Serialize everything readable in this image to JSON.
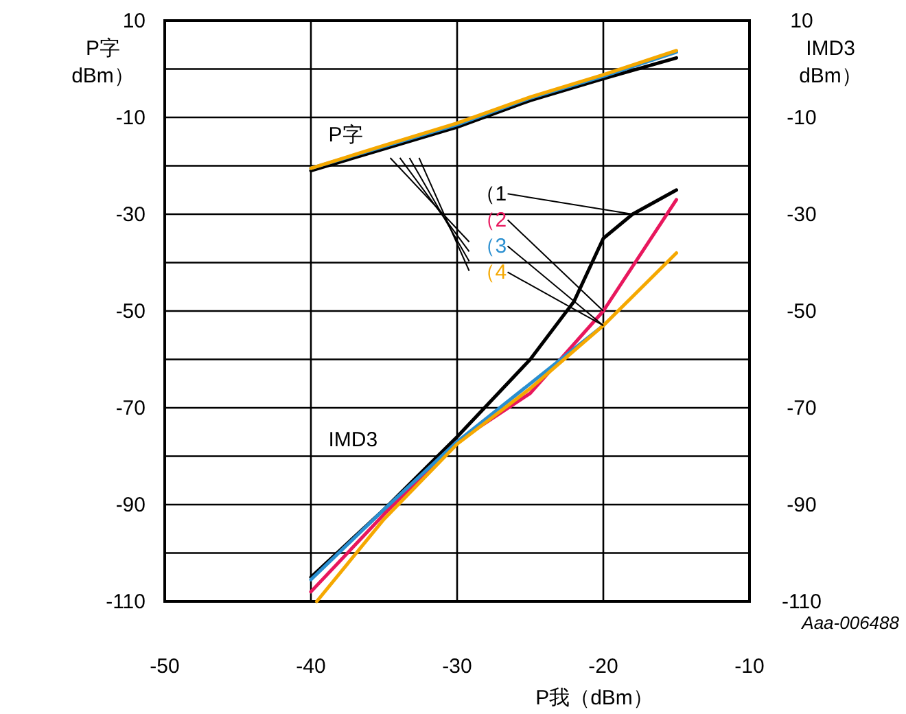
{
  "chart_data": {
    "type": "line",
    "xlabel": "P我（dBm）",
    "ylabel": "P字\ndBm）",
    "y2label": "IMD3\ndBm）",
    "x": [
      -40,
      -35,
      -30,
      -25,
      -20,
      -15
    ],
    "xlim": [
      -50,
      -10
    ],
    "xticks": [
      -50,
      -40,
      -30,
      -20,
      -10
    ],
    "ylim": [
      -110,
      10
    ],
    "yticks": [
      10,
      {
        "value": 0,
        "label": null
      },
      -10,
      {
        "value": -20,
        "label": null
      },
      -30,
      {
        "value": -40,
        "label": null
      },
      -50,
      {
        "value": -60,
        "label": null
      },
      -70,
      {
        "value": -80,
        "label": null
      },
      -90,
      {
        "value": -100,
        "label": null
      },
      -110
    ],
    "y2lim": [
      -110,
      10
    ],
    "y2ticks": [
      10,
      -10,
      -30,
      -50,
      -70,
      -90,
      -110
    ],
    "grid": true,
    "marker": "none",
    "line_style": "solid",
    "series": [
      {
        "color": "#000000",
        "values": [
          -21,
          -16.5,
          -12,
          -6.5,
          -2,
          2.3
        ]
      },
      {
        "color": "#2a8fd0",
        "values": [
          -20.5,
          -16,
          -11.5,
          -6,
          -1.5,
          3.5
        ]
      },
      {
        "color": "#f5a800",
        "values": [
          -20.5,
          -15.8,
          -11.2,
          -5.8,
          -1.2,
          3.8
        ]
      },
      {
        "name": "（1",
        "color": "#000000",
        "x": [
          -40,
          -35,
          -30,
          -25,
          -22,
          -20,
          -18,
          -15
        ],
        "values": [
          -105,
          -91,
          -76,
          -60,
          -48,
          -35,
          -30,
          -25
        ]
      },
      {
        "name": "（2",
        "color": "#e8175d",
        "values": [
          -108,
          -92,
          -77,
          -67,
          -50,
          -27
        ]
      },
      {
        "name": "（3",
        "color": "#2a8fd0",
        "values": [
          -105.5,
          -91,
          -77,
          null,
          -53,
          null
        ]
      },
      {
        "name": "（4",
        "color": "#f5a800",
        "x": [
          -39.6,
          -35,
          -30,
          -25,
          -20,
          -15
        ],
        "values": [
          -110,
          -93,
          -77.5,
          -66,
          -53,
          -38
        ]
      }
    ],
    "annotations": [
      "P字",
      "IMD3",
      "Aaa-006488"
    ]
  }
}
